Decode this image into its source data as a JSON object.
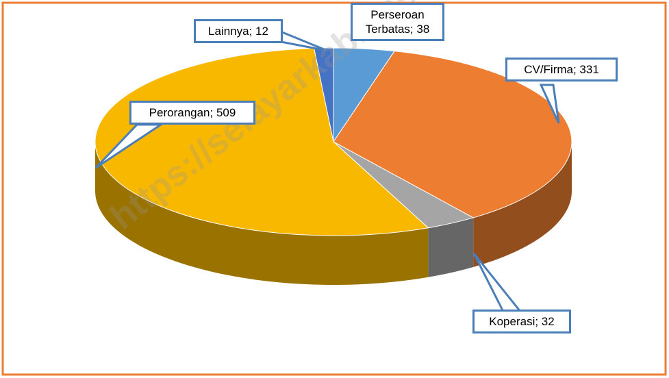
{
  "chart_data": {
    "type": "pie",
    "values": [
      38,
      331,
      32,
      509,
      12
    ],
    "value_labels": [
      "Perseroan Terbatas; 38",
      "CV/Firma; 331",
      "Koperasi; 32",
      "Perorangan; 509",
      "Lainnya; 12"
    ],
    "colors": [
      "#5b9bd5",
      "#ed7d31",
      "#a5a5a5",
      "#f8b800",
      "#4472c4"
    ],
    "watermark": "https://selayarkab.bps.go.id"
  }
}
